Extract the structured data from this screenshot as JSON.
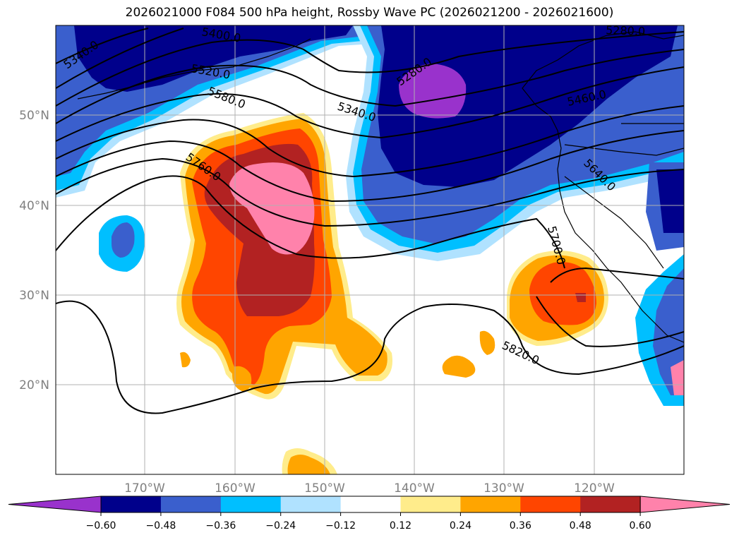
{
  "title": "2026021000 F084 500 hPa height, Rossby Wave PC (2026021200 - 2026021600)",
  "lat_labels": [
    "50°N",
    "40°N",
    "30°N",
    "20°N"
  ],
  "lon_labels": [
    "170°W",
    "160°W",
    "150°W",
    "140°W",
    "130°W",
    "120°W"
  ],
  "contour_labels": [
    "5340.0",
    "5400.0",
    "5520.0",
    "5580.0",
    "5760.0",
    "5340.0",
    "5280.0",
    "5280.0",
    "5460.0",
    "5640.0",
    "5700.0",
    "5820.0"
  ],
  "colorbar": {
    "ticks": [
      "−0.60",
      "−0.48",
      "−0.36",
      "−0.24",
      "−0.12",
      "0.12",
      "0.24",
      "0.36",
      "0.48",
      "0.60"
    ],
    "colors": [
      "#9932cc",
      "#00008b",
      "#3a5fcd",
      "#00bfff",
      "#b0e2ff",
      "#ffffff",
      "#ffec8b",
      "#ffa500",
      "#ff4500",
      "#b22222",
      "#ff82ab"
    ]
  },
  "colors": {
    "contour": "#000000",
    "coast": "#000000",
    "grid": "#b0b0b0"
  }
}
